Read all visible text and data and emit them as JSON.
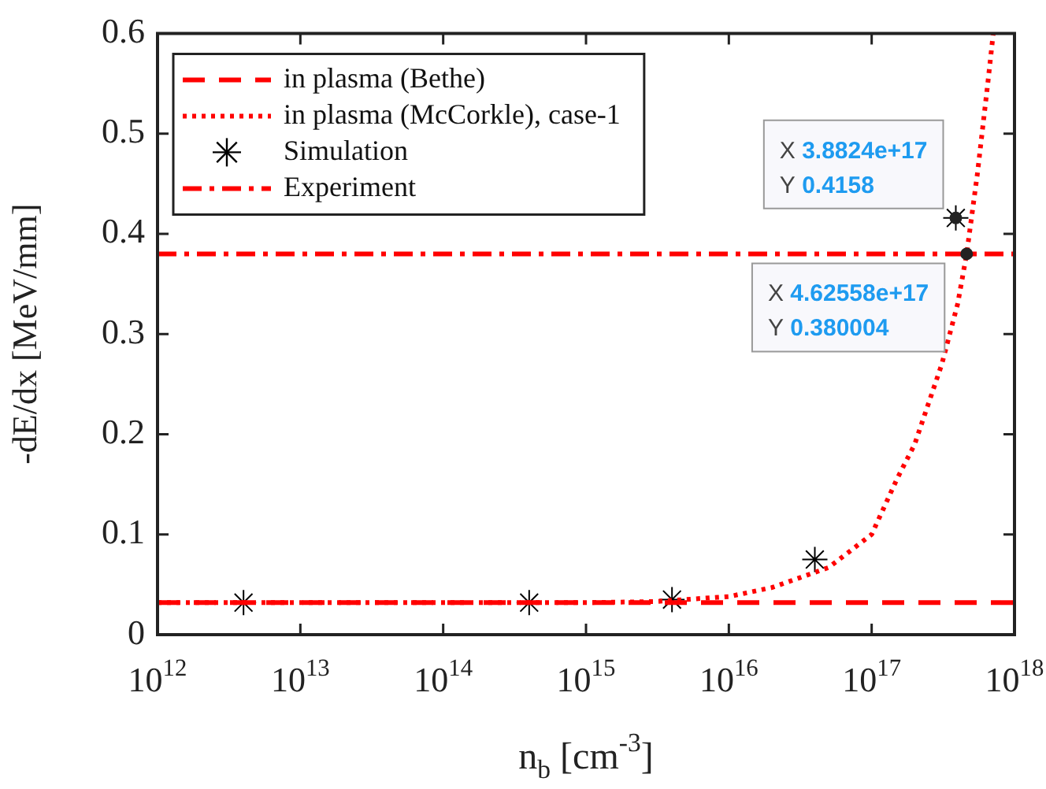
{
  "chart_data": {
    "type": "line",
    "xlabel": "n$_{b}$ [cm$^{-3}$]",
    "ylabel": "-dE/dx [MeV/mm]",
    "log": "x",
    "xlim": [
      1000000000000.0,
      1e+18
    ],
    "ylim": [
      0,
      0.6
    ],
    "xticks": [
      {
        "value": 1000000000000.0,
        "label": "10$^{12}$"
      },
      {
        "value": 10000000000000.0,
        "label": "10$^{13}$"
      },
      {
        "value": 100000000000000.0,
        "label": "10$^{14}$"
      },
      {
        "value": 1000000000000000.0,
        "label": "10$^{15}$"
      },
      {
        "value": 1e+16,
        "label": "10$^{16}$"
      },
      {
        "value": 1e+17,
        "label": "10$^{17}$"
      },
      {
        "value": 1e+18,
        "label": "10$^{18}$"
      }
    ],
    "yticks": [
      0,
      0.1,
      0.2,
      0.3,
      0.4,
      0.5,
      0.6
    ],
    "grid": false,
    "legend": "top left",
    "series": [
      {
        "name": "in plasma (Bethe)",
        "line_style": "dashed",
        "marker": "none",
        "color": "#ff0000",
        "x": [
          1000000000000.0,
          1e+18
        ],
        "values": [
          0.032,
          0.032
        ]
      },
      {
        "name": "in plasma (McCorkle), case-1",
        "line_style": "dotted",
        "marker": "none",
        "color": "#ff0000",
        "x": [
          1000000000000.0,
          1000000000000000.0,
          3000000000000000.0,
          1e+16,
          2e+16,
          5e+16,
          1e+17,
          1.5e+17,
          2e+17,
          3.1e+17,
          4e+17,
          4.62558e+17,
          5.5e+17,
          6.5e+17,
          7.1e+17
        ],
        "values": [
          0.032,
          0.032,
          0.033,
          0.038,
          0.047,
          0.067,
          0.1,
          0.155,
          0.19,
          0.27,
          0.33,
          0.380004,
          0.46,
          0.55,
          0.6
        ]
      },
      {
        "name": "Simulation",
        "type": "scatter",
        "marker": "cross",
        "color": "#000000",
        "x": [
          4000000000000.0,
          400000000000000.0,
          4000000000000000.0,
          4e+16,
          3.8824e+17
        ],
        "values": [
          0.032,
          0.032,
          0.035,
          0.075,
          0.4158
        ]
      },
      {
        "name": "Experiment",
        "line_style": "dashdot",
        "marker": "none",
        "color": "#ff0000",
        "x": [
          1000000000000.0,
          1e+18
        ],
        "values": [
          0.38,
          0.38
        ]
      }
    ],
    "annotations": [
      {
        "text": "X 3.8824e+17\nY 0.4158",
        "x": 3.8824e+17,
        "y": 0.4158
      },
      {
        "text": "X 4.62558e+17\nY 0.380004",
        "x": 4.62558e+17,
        "y": 0.380004
      }
    ]
  }
}
